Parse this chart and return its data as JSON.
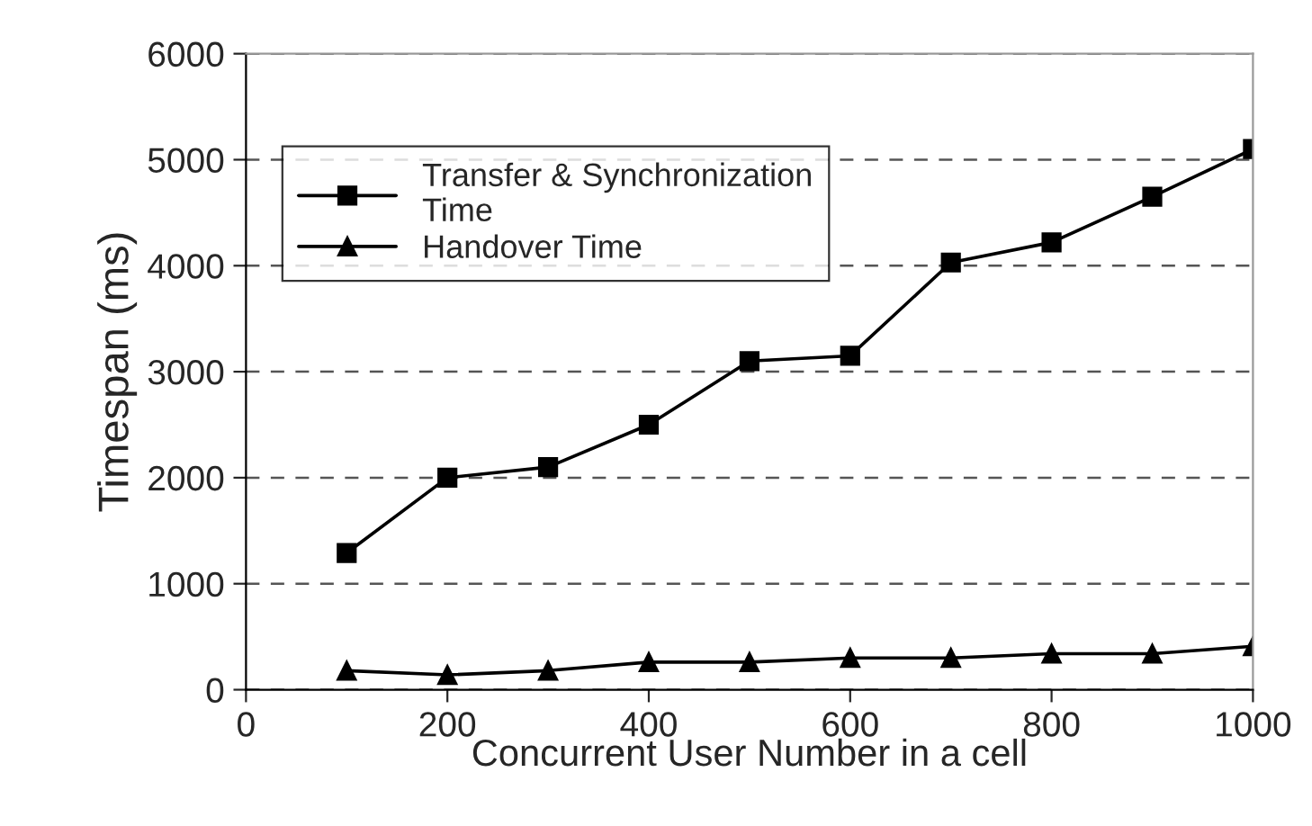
{
  "chart_data": {
    "type": "line",
    "xlabel": "Concurrent User Number in a cell",
    "ylabel": "Timespan (ms)",
    "xlim": [
      0,
      1000
    ],
    "xticks": [
      0,
      200,
      400,
      600,
      800,
      1000
    ],
    "ylim": [
      0,
      6000
    ],
    "yticks": [
      0,
      1000,
      2000,
      3000,
      4000,
      5000,
      6000
    ],
    "grid": "y",
    "legend": "top left",
    "line_style": "solid",
    "series": [
      {
        "name": "Transfer & Synchronization\nTime",
        "color": "#000000",
        "marker": "square",
        "x": [
          100,
          200,
          300,
          400,
          500,
          600,
          700,
          800,
          900,
          1000
        ],
        "values": [
          1290,
          2000,
          2100,
          2500,
          3100,
          3150,
          4030,
          4220,
          4650,
          5100
        ]
      },
      {
        "name": "Handover Time",
        "color": "#000000",
        "marker": "triangle",
        "x": [
          100,
          200,
          300,
          400,
          500,
          600,
          700,
          800,
          900,
          1000
        ],
        "values": [
          180,
          140,
          180,
          260,
          260,
          300,
          300,
          340,
          340,
          410
        ]
      }
    ]
  }
}
